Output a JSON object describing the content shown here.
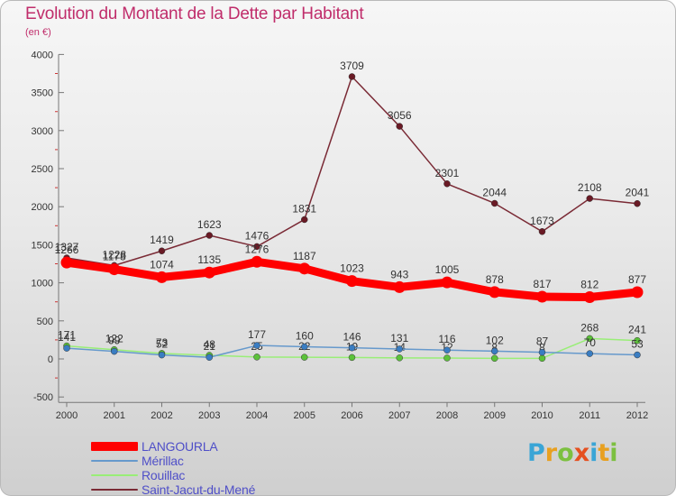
{
  "header": {
    "title": "Evolution du Montant de la Dette par Habitant",
    "unit": "(en €)"
  },
  "logo": {
    "text": "Proxiti",
    "letters": [
      {
        "ch": "P",
        "color": "#3aa5d6"
      },
      {
        "ch": "r",
        "color": "#e8a020"
      },
      {
        "ch": "o",
        "color": "#7cc040"
      },
      {
        "ch": "x",
        "color": "#e55020"
      },
      {
        "ch": "i",
        "color": "#3aa5d6"
      },
      {
        "ch": "t",
        "color": "#e8a020"
      },
      {
        "ch": "i",
        "color": "#7cc040"
      }
    ]
  },
  "chart_data": {
    "type": "line",
    "title": "Evolution du Montant de la Dette par Habitant",
    "subtitle": "(en €)",
    "xlabel": "",
    "ylabel": "",
    "categories": [
      "2000",
      "2001",
      "2002",
      "2003",
      "2004",
      "2005",
      "2006",
      "2007",
      "2008",
      "2009",
      "2010",
      "2011",
      "2012"
    ],
    "ylim": [
      -500,
      4000
    ],
    "yticks": [
      "-500",
      "0",
      "500",
      "1000",
      "1500",
      "2000",
      "2500",
      "3000",
      "3500",
      "4000"
    ],
    "grid": false,
    "legend_position": "bottom-left",
    "series": [
      {
        "name": "LANGOURLA",
        "color": "#ff0000",
        "marker": "#ff0000",
        "values": [
          1266,
          1178,
          1074,
          1135,
          1276,
          1187,
          1023,
          943,
          1005,
          878,
          817,
          812,
          877
        ],
        "labels": [
          "1266",
          "1178",
          "1074",
          "1135",
          "1276",
          "1187",
          "1023",
          "943",
          "1005",
          "878",
          "817",
          "812",
          "877"
        ]
      },
      {
        "name": "Mérillac",
        "color": "#6699cc",
        "marker": "#3a7dc2",
        "values": [
          141,
          99,
          52,
          21,
          177,
          160,
          146,
          131,
          116,
          102,
          87,
          70,
          53
        ],
        "labels": [
          "141",
          "99",
          "52",
          "21",
          "177",
          "160",
          "146",
          "131",
          "116",
          "102",
          "87",
          "70",
          "53"
        ]
      },
      {
        "name": "Rouillac",
        "color": "#99ee77",
        "marker": "#5cc23a",
        "values": [
          171,
          122,
          73,
          48,
          25,
          22,
          19,
          14,
          12,
          8,
          8,
          268,
          241
        ],
        "labels": [
          "171",
          "122",
          "73",
          "48",
          "25",
          "22",
          "19",
          "14",
          "12",
          "8",
          "8",
          "268",
          "241"
        ]
      },
      {
        "name": "Saint-Jacut-du-Mené",
        "color": "#7a2a35",
        "marker": "#6a1a25",
        "values": [
          1327,
          1228,
          1419,
          1623,
          1476,
          1831,
          3709,
          3056,
          2301,
          2044,
          1673,
          2108,
          2041
        ],
        "labels": [
          "1327",
          "1228",
          "1419",
          "1623",
          "1476",
          "1831",
          "3709",
          "3056",
          "2301",
          "2044",
          "1673",
          "2108",
          "2041"
        ]
      }
    ]
  },
  "legend": {
    "items": [
      {
        "label": "LANGOURLA",
        "color": "#ff0000"
      },
      {
        "label": "Mérillac",
        "color": "#6699cc"
      },
      {
        "label": "Rouillac",
        "color": "#99ee77"
      },
      {
        "label": "Saint-Jacut-du-Mené",
        "color": "#7a2a35"
      }
    ]
  }
}
